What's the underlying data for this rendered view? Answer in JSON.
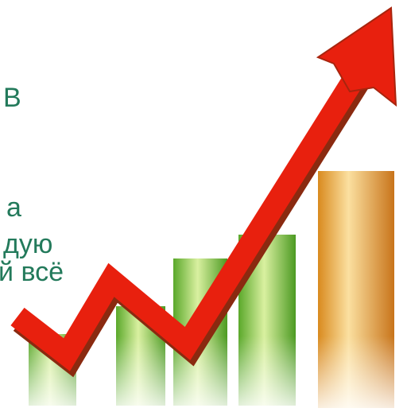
{
  "text_fragments": [
    "В",
    "а",
    "дую",
    "й всё"
  ]
}
